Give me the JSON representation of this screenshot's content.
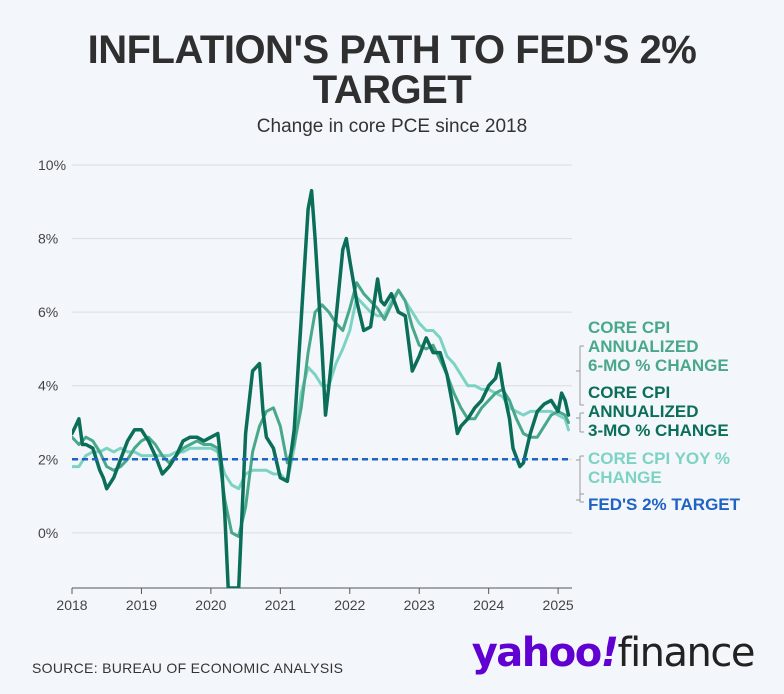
{
  "title_line1": "INFLATION'S PATH TO FED'S 2%",
  "title_line2": "TARGET",
  "subtitle": "Change in core PCE since 2018",
  "source": "SOURCE: BUREAU OF ECONOMIC ANALYSIS",
  "brand": {
    "yahoo": "yahoo",
    "bang": "!",
    "finance": "finance"
  },
  "colors": {
    "background": "#f3f7fb",
    "six_month": "#4aa88a",
    "three_month": "#0b6e58",
    "yoy": "#7dd3c3",
    "target": "#1f63c4",
    "grid": "#d9dde2",
    "brand": "#6001d2"
  },
  "chart_data": {
    "type": "line",
    "xlim": [
      2018.0,
      2025.2
    ],
    "ylim": [
      -1.5,
      10
    ],
    "y_ticks": [
      0,
      2,
      4,
      6,
      8,
      10
    ],
    "y_tick_labels": [
      "0%",
      "2%",
      "4%",
      "6%",
      "8%",
      "10%"
    ],
    "x_ticks": [
      2018,
      2019,
      2020,
      2021,
      2022,
      2023,
      2024,
      2025
    ],
    "x_tick_labels": [
      "2018",
      "2019",
      "2020",
      "2021",
      "2022",
      "2023",
      "2024",
      "2025"
    ],
    "grid": true,
    "target_value": 2,
    "legend_position": "right",
    "legend": [
      {
        "label": "CORE CPI ANNUALIZED 6-MO % CHANGE",
        "lines": [
          "CORE CPI",
          "ANNUALIZED",
          "6-MO % CHANGE"
        ],
        "color": "#4aa88a"
      },
      {
        "label": "CORE CPI ANNUALIZED 3-MO % CHANGE",
        "lines": [
          "CORE CPI",
          "ANNUALIZED",
          "3-MO % CHANGE"
        ],
        "color": "#0b6e58"
      },
      {
        "label": "CORE CPI YOY % CHANGE",
        "lines": [
          "CORE CPI YOY %",
          "CHANGE"
        ],
        "color": "#7dd3c3"
      },
      {
        "label": "FED'S 2% TARGET",
        "lines": [
          "FED'S 2% TARGET"
        ],
        "color": "#1f63c4"
      }
    ],
    "series": [
      {
        "name": "CORE CPI ANNUALIZED 6-MO % CHANGE",
        "color": "#4aa88a",
        "points": [
          [
            2018.0,
            2.6
          ],
          [
            2018.05,
            2.5
          ],
          [
            2018.1,
            2.4
          ],
          [
            2018.2,
            2.6
          ],
          [
            2018.3,
            2.5
          ],
          [
            2018.4,
            2.2
          ],
          [
            2018.5,
            1.8
          ],
          [
            2018.6,
            1.7
          ],
          [
            2018.7,
            1.8
          ],
          [
            2018.8,
            2.0
          ],
          [
            2018.9,
            2.3
          ],
          [
            2019.0,
            2.5
          ],
          [
            2019.1,
            2.6
          ],
          [
            2019.2,
            2.4
          ],
          [
            2019.3,
            2.1
          ],
          [
            2019.4,
            1.9
          ],
          [
            2019.5,
            2.1
          ],
          [
            2019.6,
            2.3
          ],
          [
            2019.7,
            2.4
          ],
          [
            2019.8,
            2.5
          ],
          [
            2019.9,
            2.4
          ],
          [
            2020.0,
            2.4
          ],
          [
            2020.1,
            2.3
          ],
          [
            2020.2,
            0.9
          ],
          [
            2020.3,
            0.0
          ],
          [
            2020.4,
            -0.1
          ],
          [
            2020.5,
            0.7
          ],
          [
            2020.6,
            2.2
          ],
          [
            2020.7,
            2.9
          ],
          [
            2020.8,
            3.3
          ],
          [
            2020.9,
            3.4
          ],
          [
            2021.0,
            2.9
          ],
          [
            2021.1,
            1.9
          ],
          [
            2021.2,
            2.4
          ],
          [
            2021.3,
            3.4
          ],
          [
            2021.4,
            4.9
          ],
          [
            2021.5,
            6.0
          ],
          [
            2021.6,
            6.2
          ],
          [
            2021.7,
            6.0
          ],
          [
            2021.8,
            5.7
          ],
          [
            2021.9,
            5.5
          ],
          [
            2022.0,
            6.1
          ],
          [
            2022.1,
            6.8
          ],
          [
            2022.2,
            6.5
          ],
          [
            2022.3,
            6.3
          ],
          [
            2022.4,
            6.1
          ],
          [
            2022.5,
            5.8
          ],
          [
            2022.6,
            6.2
          ],
          [
            2022.7,
            6.6
          ],
          [
            2022.8,
            6.3
          ],
          [
            2022.9,
            5.6
          ],
          [
            2023.0,
            5.1
          ],
          [
            2023.1,
            5.0
          ],
          [
            2023.2,
            5.1
          ],
          [
            2023.3,
            4.7
          ],
          [
            2023.4,
            4.3
          ],
          [
            2023.5,
            3.8
          ],
          [
            2023.6,
            3.4
          ],
          [
            2023.7,
            3.1
          ],
          [
            2023.8,
            3.1
          ],
          [
            2023.9,
            3.4
          ],
          [
            2024.0,
            3.6
          ],
          [
            2024.1,
            3.8
          ],
          [
            2024.2,
            3.9
          ],
          [
            2024.3,
            3.6
          ],
          [
            2024.4,
            3.1
          ],
          [
            2024.5,
            2.7
          ],
          [
            2024.6,
            2.6
          ],
          [
            2024.7,
            2.6
          ],
          [
            2024.8,
            2.9
          ],
          [
            2024.9,
            3.2
          ],
          [
            2025.0,
            3.3
          ],
          [
            2025.1,
            3.2
          ],
          [
            2025.15,
            3.0
          ]
        ]
      },
      {
        "name": "CORE CPI ANNUALIZED 3-MO % CHANGE",
        "color": "#0b6e58",
        "points": [
          [
            2018.0,
            2.7
          ],
          [
            2018.05,
            2.9
          ],
          [
            2018.1,
            3.1
          ],
          [
            2018.15,
            2.4
          ],
          [
            2018.2,
            2.4
          ],
          [
            2018.3,
            2.3
          ],
          [
            2018.4,
            1.7
          ],
          [
            2018.45,
            1.5
          ],
          [
            2018.5,
            1.2
          ],
          [
            2018.6,
            1.5
          ],
          [
            2018.7,
            2.0
          ],
          [
            2018.8,
            2.5
          ],
          [
            2018.9,
            2.8
          ],
          [
            2019.0,
            2.8
          ],
          [
            2019.1,
            2.5
          ],
          [
            2019.2,
            2.1
          ],
          [
            2019.3,
            1.6
          ],
          [
            2019.4,
            1.8
          ],
          [
            2019.5,
            2.1
          ],
          [
            2019.6,
            2.5
          ],
          [
            2019.7,
            2.6
          ],
          [
            2019.8,
            2.6
          ],
          [
            2019.9,
            2.5
          ],
          [
            2020.0,
            2.6
          ],
          [
            2020.1,
            2.7
          ],
          [
            2020.15,
            1.9
          ],
          [
            2020.2,
            0.5
          ],
          [
            2020.25,
            -1.5
          ],
          [
            2020.35,
            -1.5
          ],
          [
            2020.4,
            -1.5
          ],
          [
            2020.5,
            2.7
          ],
          [
            2020.6,
            4.4
          ],
          [
            2020.7,
            4.6
          ],
          [
            2020.75,
            3.3
          ],
          [
            2020.8,
            2.6
          ],
          [
            2020.9,
            2.3
          ],
          [
            2021.0,
            1.5
          ],
          [
            2021.1,
            1.4
          ],
          [
            2021.2,
            2.8
          ],
          [
            2021.3,
            5.8
          ],
          [
            2021.4,
            8.8
          ],
          [
            2021.45,
            9.3
          ],
          [
            2021.5,
            8.0
          ],
          [
            2021.6,
            5.0
          ],
          [
            2021.65,
            3.2
          ],
          [
            2021.7,
            4.0
          ],
          [
            2021.8,
            5.8
          ],
          [
            2021.9,
            7.7
          ],
          [
            2021.95,
            8.0
          ],
          [
            2022.0,
            7.4
          ],
          [
            2022.1,
            6.3
          ],
          [
            2022.2,
            5.5
          ],
          [
            2022.3,
            5.6
          ],
          [
            2022.4,
            6.9
          ],
          [
            2022.45,
            6.3
          ],
          [
            2022.5,
            6.2
          ],
          [
            2022.6,
            6.5
          ],
          [
            2022.7,
            6.0
          ],
          [
            2022.8,
            5.9
          ],
          [
            2022.9,
            4.4
          ],
          [
            2023.0,
            4.8
          ],
          [
            2023.1,
            5.3
          ],
          [
            2023.2,
            4.9
          ],
          [
            2023.3,
            4.9
          ],
          [
            2023.4,
            4.3
          ],
          [
            2023.5,
            3.3
          ],
          [
            2023.55,
            2.7
          ],
          [
            2023.6,
            2.9
          ],
          [
            2023.7,
            3.1
          ],
          [
            2023.8,
            3.4
          ],
          [
            2023.9,
            3.6
          ],
          [
            2024.0,
            4.0
          ],
          [
            2024.1,
            4.2
          ],
          [
            2024.15,
            4.6
          ],
          [
            2024.2,
            4.0
          ],
          [
            2024.3,
            3.1
          ],
          [
            2024.35,
            2.3
          ],
          [
            2024.45,
            1.8
          ],
          [
            2024.5,
            1.9
          ],
          [
            2024.6,
            2.7
          ],
          [
            2024.7,
            3.3
          ],
          [
            2024.8,
            3.5
          ],
          [
            2024.9,
            3.6
          ],
          [
            2025.0,
            3.3
          ],
          [
            2025.05,
            3.8
          ],
          [
            2025.1,
            3.6
          ],
          [
            2025.15,
            3.2
          ]
        ]
      },
      {
        "name": "CORE CPI YOY % CHANGE",
        "color": "#7dd3c3",
        "points": [
          [
            2018.0,
            1.8
          ],
          [
            2018.1,
            1.8
          ],
          [
            2018.2,
            2.1
          ],
          [
            2018.3,
            2.2
          ],
          [
            2018.4,
            2.2
          ],
          [
            2018.5,
            2.3
          ],
          [
            2018.6,
            2.2
          ],
          [
            2018.7,
            2.3
          ],
          [
            2018.8,
            2.2
          ],
          [
            2018.9,
            2.2
          ],
          [
            2019.0,
            2.1
          ],
          [
            2019.1,
            2.1
          ],
          [
            2019.2,
            2.1
          ],
          [
            2019.3,
            2.1
          ],
          [
            2019.4,
            2.1
          ],
          [
            2019.5,
            2.2
          ],
          [
            2019.6,
            2.2
          ],
          [
            2019.7,
            2.3
          ],
          [
            2019.8,
            2.3
          ],
          [
            2019.9,
            2.3
          ],
          [
            2020.0,
            2.3
          ],
          [
            2020.1,
            2.2
          ],
          [
            2020.2,
            1.6
          ],
          [
            2020.3,
            1.3
          ],
          [
            2020.4,
            1.2
          ],
          [
            2020.5,
            1.6
          ],
          [
            2020.6,
            1.7
          ],
          [
            2020.7,
            1.7
          ],
          [
            2020.8,
            1.7
          ],
          [
            2020.9,
            1.6
          ],
          [
            2021.0,
            1.6
          ],
          [
            2021.1,
            1.4
          ],
          [
            2021.2,
            2.3
          ],
          [
            2021.3,
            3.8
          ],
          [
            2021.4,
            4.5
          ],
          [
            2021.5,
            4.3
          ],
          [
            2021.6,
            4.0
          ],
          [
            2021.7,
            4.0
          ],
          [
            2021.8,
            4.6
          ],
          [
            2021.9,
            5.0
          ],
          [
            2022.0,
            5.5
          ],
          [
            2022.1,
            6.4
          ],
          [
            2022.2,
            6.2
          ],
          [
            2022.3,
            6.0
          ],
          [
            2022.4,
            5.9
          ],
          [
            2022.5,
            5.9
          ],
          [
            2022.6,
            6.3
          ],
          [
            2022.7,
            6.6
          ],
          [
            2022.8,
            6.3
          ],
          [
            2022.9,
            6.0
          ],
          [
            2023.0,
            5.7
          ],
          [
            2023.1,
            5.5
          ],
          [
            2023.2,
            5.5
          ],
          [
            2023.3,
            5.3
          ],
          [
            2023.4,
            4.8
          ],
          [
            2023.5,
            4.6
          ],
          [
            2023.6,
            4.3
          ],
          [
            2023.7,
            4.0
          ],
          [
            2023.8,
            4.0
          ],
          [
            2023.9,
            3.9
          ],
          [
            2024.0,
            3.9
          ],
          [
            2024.1,
            3.8
          ],
          [
            2024.2,
            3.7
          ],
          [
            2024.3,
            3.4
          ],
          [
            2024.4,
            3.3
          ],
          [
            2024.5,
            3.2
          ],
          [
            2024.6,
            3.3
          ],
          [
            2024.7,
            3.3
          ],
          [
            2024.8,
            3.3
          ],
          [
            2024.9,
            3.3
          ],
          [
            2025.0,
            3.2
          ],
          [
            2025.1,
            3.1
          ],
          [
            2025.15,
            2.8
          ]
        ]
      }
    ]
  }
}
